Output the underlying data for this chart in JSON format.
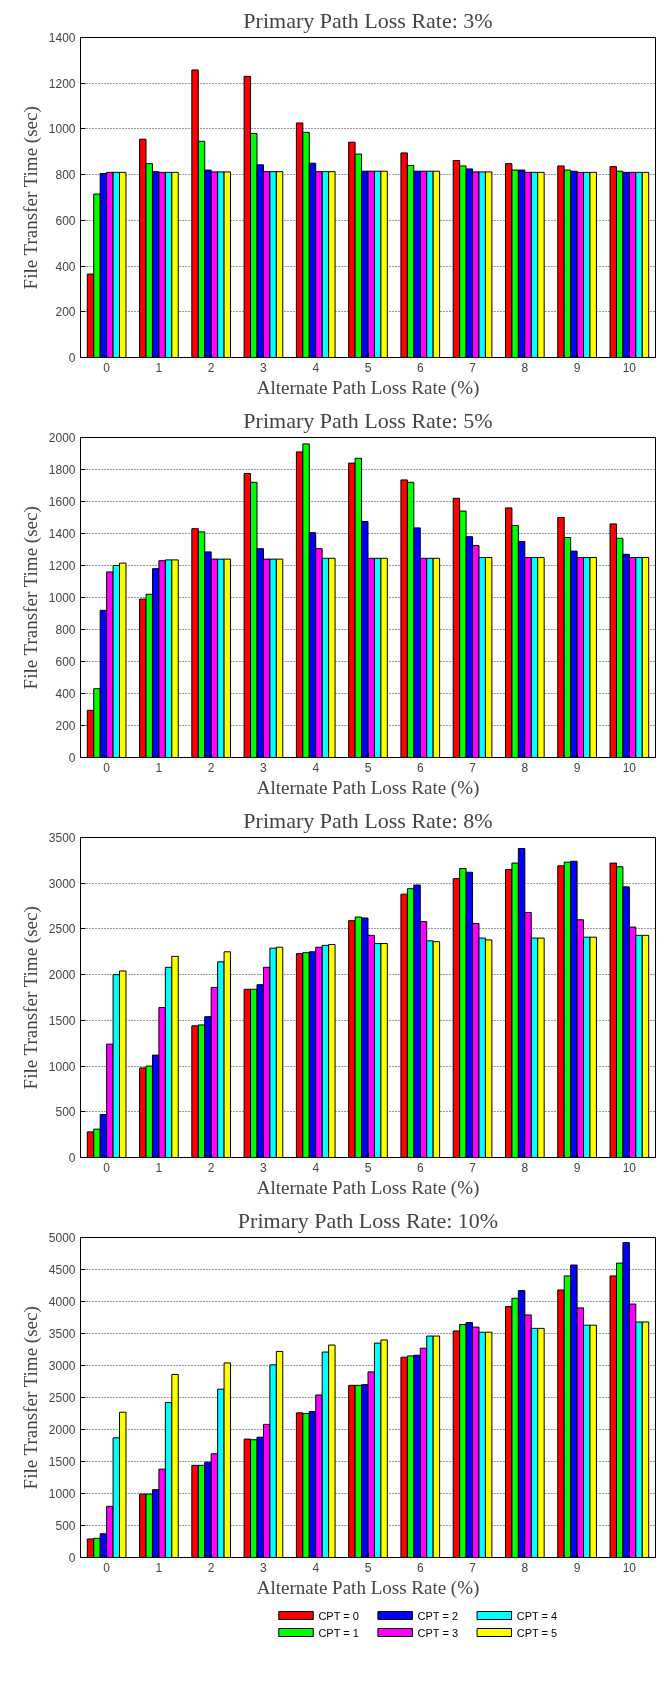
{
  "chart_data": [
    {
      "type": "bar",
      "title": "Primary Path Loss Rate: 3%",
      "xlabel": "Alternate Path Loss Rate (%)",
      "ylabel": "File Transfer Time (sec)",
      "categories": [
        "0",
        "1",
        "2",
        "3",
        "4",
        "5",
        "6",
        "7",
        "8",
        "9",
        "10"
      ],
      "ylim": [
        0,
        1400
      ],
      "yticks": [
        0,
        200,
        400,
        600,
        800,
        1000,
        1200,
        1400
      ],
      "grid": "y",
      "series": [
        {
          "color": "#ff0000",
          "values": [
            365,
            955,
            1258,
            1230,
            1026,
            942,
            895,
            862,
            848,
            838,
            835
          ]
        },
        {
          "color": "#00ff00",
          "values": [
            715,
            848,
            946,
            980,
            985,
            890,
            840,
            838,
            820,
            820,
            815
          ]
        },
        {
          "color": "#0000ff",
          "values": [
            805,
            813,
            820,
            843,
            850,
            815,
            815,
            825,
            820,
            815,
            810
          ]
        },
        {
          "color": "#ff00ff",
          "values": [
            810,
            810,
            812,
            813,
            813,
            815,
            815,
            812,
            810,
            810,
            810
          ]
        },
        {
          "color": "#00ffff",
          "values": [
            810,
            810,
            812,
            813,
            813,
            815,
            815,
            812,
            810,
            810,
            810
          ]
        },
        {
          "color": "#ffff00",
          "values": [
            810,
            810,
            812,
            813,
            813,
            815,
            815,
            812,
            810,
            810,
            810
          ]
        }
      ]
    },
    {
      "type": "bar",
      "title": "Primary Path Loss Rate: 5%",
      "xlabel": "Alternate Path Loss Rate (%)",
      "ylabel": "File Transfer Time (sec)",
      "categories": [
        "0",
        "1",
        "2",
        "3",
        "4",
        "5",
        "6",
        "7",
        "8",
        "9",
        "10"
      ],
      "ylim": [
        0,
        2000
      ],
      "yticks": [
        0,
        200,
        400,
        600,
        800,
        1000,
        1200,
        1400,
        1600,
        1800,
        2000
      ],
      "grid": "y",
      "series": [
        {
          "color": "#ff0000",
          "values": [
            295,
            990,
            1430,
            1775,
            1910,
            1840,
            1735,
            1620,
            1560,
            1500,
            1460
          ]
        },
        {
          "color": "#00ff00",
          "values": [
            430,
            1020,
            1410,
            1720,
            1960,
            1870,
            1720,
            1540,
            1450,
            1375,
            1370
          ]
        },
        {
          "color": "#0000ff",
          "values": [
            920,
            1180,
            1285,
            1305,
            1405,
            1475,
            1435,
            1380,
            1350,
            1290,
            1270
          ]
        },
        {
          "color": "#ff00ff",
          "values": [
            1160,
            1230,
            1240,
            1240,
            1305,
            1245,
            1245,
            1325,
            1250,
            1250,
            1250
          ]
        },
        {
          "color": "#00ffff",
          "values": [
            1200,
            1235,
            1240,
            1240,
            1245,
            1245,
            1245,
            1250,
            1250,
            1250,
            1250
          ]
        },
        {
          "color": "#ffff00",
          "values": [
            1215,
            1235,
            1240,
            1240,
            1245,
            1245,
            1245,
            1250,
            1250,
            1250,
            1250
          ]
        }
      ]
    },
    {
      "type": "bar",
      "title": "Primary Path Loss Rate: 8%",
      "xlabel": "Alternate Path Loss Rate (%)",
      "ylabel": "File Transfer Time (sec)",
      "categories": [
        "0",
        "1",
        "2",
        "3",
        "4",
        "5",
        "6",
        "7",
        "8",
        "9",
        "10"
      ],
      "ylim": [
        0,
        3500
      ],
      "yticks": [
        0,
        500,
        1000,
        1500,
        2000,
        2500,
        3000,
        3500
      ],
      "grid": "y",
      "series": [
        {
          "color": "#ff0000",
          "values": [
            280,
            980,
            1440,
            1840,
            2230,
            2590,
            2880,
            3050,
            3150,
            3190,
            3220
          ]
        },
        {
          "color": "#00ff00",
          "values": [
            310,
            1000,
            1450,
            1840,
            2240,
            2630,
            2940,
            3160,
            3220,
            3230,
            3180
          ]
        },
        {
          "color": "#0000ff",
          "values": [
            470,
            1120,
            1540,
            1890,
            2250,
            2620,
            2980,
            3120,
            3380,
            3240,
            2960
          ]
        },
        {
          "color": "#ff00ff",
          "values": [
            1240,
            1640,
            1860,
            2080,
            2300,
            2430,
            2580,
            2560,
            2680,
            2600,
            2520
          ]
        },
        {
          "color": "#00ffff",
          "values": [
            2000,
            2080,
            2140,
            2290,
            2320,
            2340,
            2370,
            2400,
            2400,
            2410,
            2430
          ]
        },
        {
          "color": "#ffff00",
          "values": [
            2040,
            2200,
            2250,
            2300,
            2330,
            2340,
            2360,
            2380,
            2400,
            2410,
            2430
          ]
        }
      ]
    },
    {
      "type": "bar",
      "title": "Primary Path Loss Rate: 10%",
      "xlabel": "Alternate Path Loss Rate (%)",
      "ylabel": "File Transfer Time (sec)",
      "categories": [
        "0",
        "1",
        "2",
        "3",
        "4",
        "5",
        "6",
        "7",
        "8",
        "9",
        "10"
      ],
      "ylim": [
        0,
        5000
      ],
      "yticks": [
        0,
        500,
        1000,
        1500,
        2000,
        2500,
        3000,
        3500,
        4000,
        4500,
        5000
      ],
      "grid": "y",
      "legend": "bottom",
      "series": [
        {
          "name": "CPT = 0",
          "color": "#ff0000",
          "values": [
            290,
            990,
            1440,
            1850,
            2260,
            2690,
            3130,
            3540,
            3920,
            4180,
            4400
          ]
        },
        {
          "name": "CPT = 1",
          "color": "#00ff00",
          "values": [
            300,
            990,
            1440,
            1840,
            2250,
            2690,
            3150,
            3640,
            4050,
            4400,
            4600
          ]
        },
        {
          "name": "CPT = 2",
          "color": "#0000ff",
          "values": [
            370,
            1060,
            1490,
            1880,
            2280,
            2700,
            3160,
            3670,
            4170,
            4570,
            4920
          ]
        },
        {
          "name": "CPT = 3",
          "color": "#ff00ff",
          "values": [
            800,
            1380,
            1620,
            2080,
            2540,
            2900,
            3270,
            3600,
            3790,
            3900,
            3960
          ]
        },
        {
          "name": "CPT = 4",
          "color": "#00ffff",
          "values": [
            1870,
            2420,
            2630,
            3010,
            3210,
            3350,
            3460,
            3520,
            3580,
            3630,
            3680
          ]
        },
        {
          "name": "CPT = 5",
          "color": "#ffff00",
          "values": [
            2270,
            2860,
            3040,
            3220,
            3320,
            3400,
            3460,
            3520,
            3580,
            3630,
            3680
          ]
        }
      ]
    }
  ]
}
